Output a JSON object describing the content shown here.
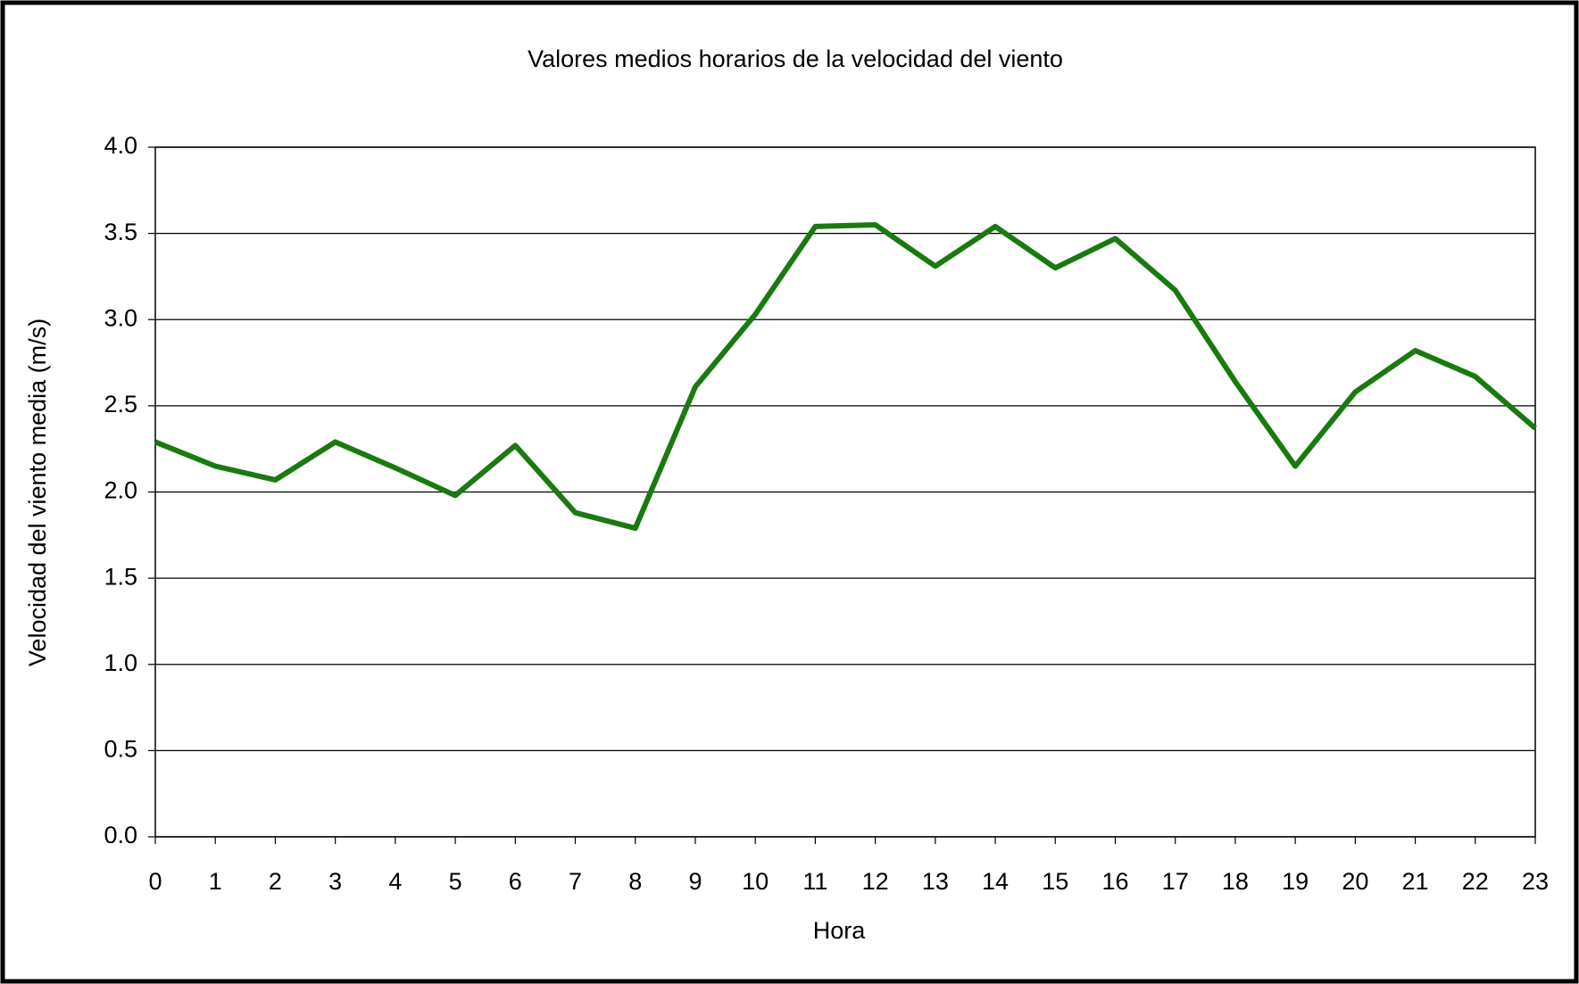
{
  "chart_data": {
    "type": "line",
    "title": "Valores medios horarios de la velocidad del viento",
    "x_label": "Hora",
    "y_label": "Velocidad del viento media (m/s)",
    "x": [
      0,
      1,
      2,
      3,
      4,
      5,
      6,
      7,
      8,
      9,
      10,
      11,
      12,
      13,
      14,
      15,
      16,
      17,
      18,
      19,
      20,
      21,
      22,
      23
    ],
    "series": [
      {
        "name": null,
        "color": "#1a7a10",
        "values": [
          2.29,
          2.15,
          2.07,
          2.29,
          2.14,
          1.98,
          2.27,
          1.88,
          1.79,
          2.61,
          3.03,
          3.54,
          3.55,
          3.31,
          3.54,
          3.3,
          3.47,
          3.17,
          2.64,
          2.15,
          2.58,
          2.82,
          2.67,
          2.37
        ]
      }
    ],
    "xlim": [
      0,
      23
    ],
    "xticks": [
      0,
      1,
      2,
      3,
      4,
      5,
      6,
      7,
      8,
      9,
      10,
      11,
      12,
      13,
      14,
      15,
      16,
      17,
      18,
      19,
      20,
      21,
      22,
      23
    ],
    "ylim": [
      0,
      4
    ],
    "yticks": [
      {
        "value": 0,
        "label": "0.0"
      },
      0.5,
      {
        "value": 1,
        "label": "1.0"
      },
      1.5,
      {
        "value": 2,
        "label": "2.0"
      },
      2.5,
      {
        "value": 3,
        "label": "3.0"
      },
      3.5,
      {
        "value": 4,
        "label": "4.0"
      }
    ],
    "grid": true
  }
}
